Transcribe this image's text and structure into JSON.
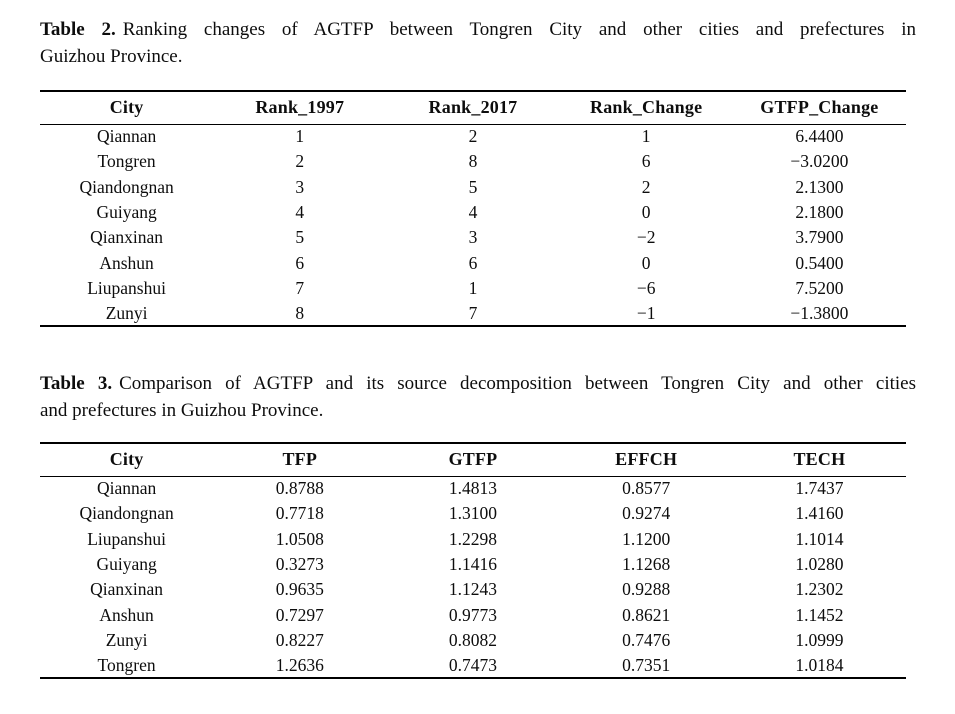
{
  "colors": {
    "background": "#ffffff",
    "text": "#0d0d0d",
    "rule": "#000000"
  },
  "table2": {
    "caption": {
      "label": "Table 2.",
      "line1": "Ranking changes of AGTFP between Tongren City and other cities and prefectures in",
      "line2": "Guizhou Province."
    },
    "columns": [
      "City",
      "Rank_1997",
      "Rank_2017",
      "Rank_Change",
      "GTFP_Change"
    ],
    "rows": [
      [
        "Qiannan",
        "1",
        "2",
        "1",
        "6.4400"
      ],
      [
        "Tongren",
        "2",
        "8",
        "6",
        "−3.0200"
      ],
      [
        "Qiandongnan",
        "3",
        "5",
        "2",
        "2.1300"
      ],
      [
        "Guiyang",
        "4",
        "4",
        "0",
        "2.1800"
      ],
      [
        "Qianxinan",
        "5",
        "3",
        "−2",
        "3.7900"
      ],
      [
        "Anshun",
        "6",
        "6",
        "0",
        "0.5400"
      ],
      [
        "Liupanshui",
        "7",
        "1",
        "−6",
        "7.5200"
      ],
      [
        "Zunyi",
        "8",
        "7",
        "−1",
        "−1.3800"
      ]
    ]
  },
  "table3": {
    "caption": {
      "label": "Table 3.",
      "line1": "Comparison of AGTFP and its source decomposition between Tongren City and other cities",
      "line2": "and prefectures in Guizhou Province."
    },
    "columns": [
      "City",
      "TFP",
      "GTFP",
      "EFFCH",
      "TECH"
    ],
    "rows": [
      [
        "Qiannan",
        "0.8788",
        "1.4813",
        "0.8577",
        "1.7437"
      ],
      [
        "Qiandongnan",
        "0.7718",
        "1.3100",
        "0.9274",
        "1.4160"
      ],
      [
        "Liupanshui",
        "1.0508",
        "1.2298",
        "1.1200",
        "1.1014"
      ],
      [
        "Guiyang",
        "0.3273",
        "1.1416",
        "1.1268",
        "1.0280"
      ],
      [
        "Qianxinan",
        "0.9635",
        "1.1243",
        "0.9288",
        "1.2302"
      ],
      [
        "Anshun",
        "0.7297",
        "0.9773",
        "0.8621",
        "1.1452"
      ],
      [
        "Zunyi",
        "0.8227",
        "0.8082",
        "0.7476",
        "1.0999"
      ],
      [
        "Tongren",
        "1.2636",
        "0.7473",
        "0.7351",
        "1.0184"
      ]
    ]
  }
}
